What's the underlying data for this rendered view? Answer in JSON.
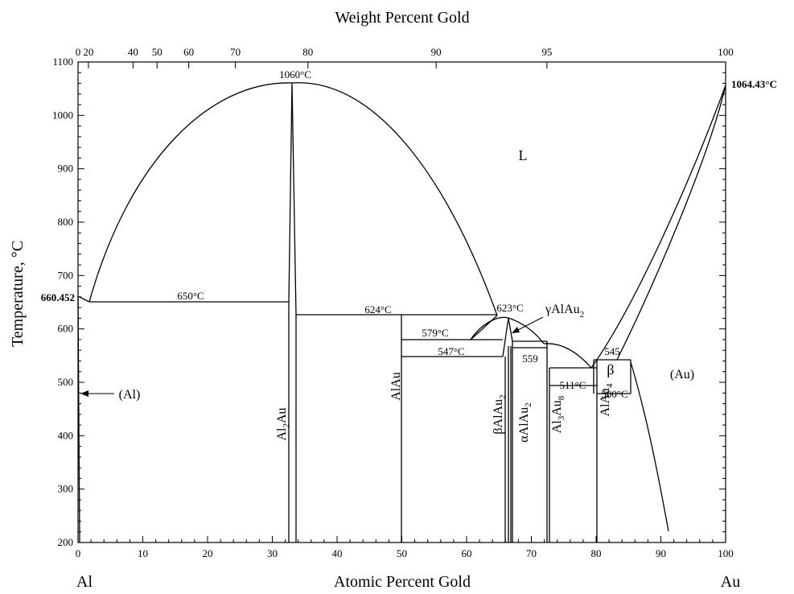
{
  "diagram": {
    "top_axis_title": "Weight Percent Gold",
    "bottom_axis_title": "Atomic Percent Gold",
    "left_axis_title": "Temperature, °C",
    "left_end_label": "Al",
    "right_end_label": "Au",
    "bottom_ticks": [
      {
        "at": 0,
        "label": "0"
      },
      {
        "at": 10,
        "label": "10"
      },
      {
        "at": 20,
        "label": "20"
      },
      {
        "at": 30,
        "label": "30"
      },
      {
        "at": 40,
        "label": "40"
      },
      {
        "at": 50,
        "label": "50"
      },
      {
        "at": 60,
        "label": "60"
      },
      {
        "at": 70,
        "label": "70"
      },
      {
        "at": 80,
        "label": "80"
      },
      {
        "at": 90,
        "label": "90"
      },
      {
        "at": 100,
        "label": "100"
      }
    ],
    "top_ticks": [
      {
        "at": 0,
        "label": "0"
      },
      {
        "at": 1.6,
        "label": "20"
      },
      {
        "at": 8.5,
        "label": "40"
      },
      {
        "at": 12.2,
        "label": "50"
      },
      {
        "at": 17.1,
        "label": "60"
      },
      {
        "at": 24.3,
        "label": "70"
      },
      {
        "at": 35.5,
        "label": "80"
      },
      {
        "at": 55.3,
        "label": "90"
      },
      {
        "at": 72.4,
        "label": "95"
      },
      {
        "at": 100,
        "label": "100"
      }
    ],
    "left_ticks": [
      {
        "t": 200,
        "label": "200"
      },
      {
        "t": 300,
        "label": "300"
      },
      {
        "t": 400,
        "label": "400"
      },
      {
        "t": 500,
        "label": "500"
      },
      {
        "t": 600,
        "label": "600"
      },
      {
        "t": 700,
        "label": "700"
      },
      {
        "t": 800,
        "label": "800"
      },
      {
        "t": 900,
        "label": "900"
      },
      {
        "t": 1000,
        "label": "1000"
      },
      {
        "t": 1100,
        "label": "1100"
      }
    ],
    "labels": {
      "al_melt": "660.452",
      "au_melt": "1064.43°C",
      "peak_1060": "1060°C",
      "eutectic_650": "650°C",
      "eutectic_624": "624°C",
      "peak_623": "623°C",
      "t_579": "579°C",
      "t_547": "547°C",
      "t_559": "559",
      "t_545": "545",
      "t_511": "511°C",
      "t_500": "500°C",
      "liquid": "L",
      "al_solid": "(Al)",
      "au_solid": "(Au)",
      "beta": "β",
      "gamma_alau2": "γAlAu",
      "gamma_sub": "2",
      "al2au_a": "Al",
      "al2au_sub": "2",
      "al2au_b": "Au",
      "alau": "AlAu",
      "beta_alau2": "βAlAu",
      "beta_alau2_sub": "2",
      "alpha_alau2": "αAlAu",
      "alpha_alau2_sub": "2",
      "al3au8_a": "Al",
      "al3au8_sub1": "3",
      "al3au8_b": "Au",
      "al3au8_sub2": "8",
      "alau4": "AlAu",
      "alau4_sub": "4"
    }
  }
}
